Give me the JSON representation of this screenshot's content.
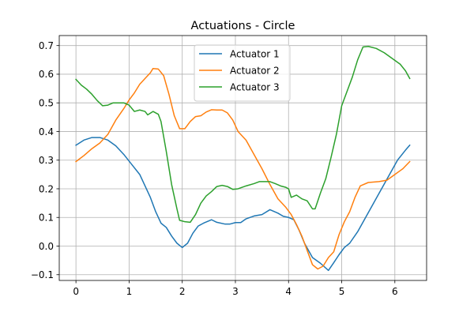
{
  "chart_data": {
    "type": "line",
    "title": "Actuations - Circle",
    "xlabel": "",
    "ylabel": "",
    "xlim": [
      -0.3142,
      6.5973
    ],
    "ylim": [
      -0.12,
      0.735
    ],
    "xticks": [
      0,
      1,
      2,
      3,
      4,
      5,
      6
    ],
    "yticks": [
      -0.1,
      0.0,
      0.1,
      0.2,
      0.3,
      0.4,
      0.5,
      0.6,
      0.7
    ],
    "ytick_labels": [
      "−0.1",
      "0.0",
      "0.1",
      "0.2",
      "0.3",
      "0.4",
      "0.5",
      "0.6",
      "0.7"
    ],
    "grid": true,
    "legend_position": "upper center",
    "series": [
      {
        "name": "Actuator 1",
        "color": "#1f77b4",
        "points": [
          [
            0,
            0.352
          ],
          [
            0.15,
            0.37
          ],
          [
            0.3,
            0.379
          ],
          [
            0.45,
            0.379
          ],
          [
            0.6,
            0.37
          ],
          [
            0.75,
            0.35
          ],
          [
            0.9,
            0.32
          ],
          [
            1.05,
            0.285
          ],
          [
            1.2,
            0.25
          ],
          [
            1.3,
            0.21
          ],
          [
            1.4,
            0.17
          ],
          [
            1.5,
            0.12
          ],
          [
            1.6,
            0.08
          ],
          [
            1.7,
            0.065
          ],
          [
            1.8,
            0.035
          ],
          [
            1.9,
            0.01
          ],
          [
            2.0,
            -0.005
          ],
          [
            2.1,
            0.01
          ],
          [
            2.2,
            0.045
          ],
          [
            2.3,
            0.07
          ],
          [
            2.4,
            0.08
          ],
          [
            2.55,
            0.092
          ],
          [
            2.65,
            0.083
          ],
          [
            2.8,
            0.077
          ],
          [
            2.9,
            0.077
          ],
          [
            3.0,
            0.082
          ],
          [
            3.1,
            0.082
          ],
          [
            3.2,
            0.095
          ],
          [
            3.35,
            0.105
          ],
          [
            3.5,
            0.11
          ],
          [
            3.65,
            0.127
          ],
          [
            3.8,
            0.115
          ],
          [
            3.9,
            0.104
          ],
          [
            4.0,
            0.1
          ],
          [
            4.1,
            0.092
          ],
          [
            4.2,
            0.055
          ],
          [
            4.3,
            0.01
          ],
          [
            4.45,
            -0.04
          ],
          [
            4.6,
            -0.06
          ],
          [
            4.75,
            -0.085
          ],
          [
            4.85,
            -0.058
          ],
          [
            4.95,
            -0.03
          ],
          [
            5.05,
            -0.005
          ],
          [
            5.15,
            0.01
          ],
          [
            5.3,
            0.05
          ],
          [
            5.45,
            0.1
          ],
          [
            5.6,
            0.15
          ],
          [
            5.75,
            0.2
          ],
          [
            5.9,
            0.25
          ],
          [
            6.05,
            0.3
          ],
          [
            6.2,
            0.335
          ],
          [
            6.28,
            0.352
          ]
        ]
      },
      {
        "name": "Actuator 2",
        "color": "#ff7f0e",
        "points": [
          [
            0,
            0.295
          ],
          [
            0.15,
            0.316
          ],
          [
            0.3,
            0.34
          ],
          [
            0.45,
            0.36
          ],
          [
            0.6,
            0.39
          ],
          [
            0.75,
            0.44
          ],
          [
            0.9,
            0.48
          ],
          [
            1.0,
            0.51
          ],
          [
            1.1,
            0.535
          ],
          [
            1.2,
            0.565
          ],
          [
            1.3,
            0.585
          ],
          [
            1.4,
            0.605
          ],
          [
            1.45,
            0.62
          ],
          [
            1.55,
            0.618
          ],
          [
            1.65,
            0.595
          ],
          [
            1.75,
            0.53
          ],
          [
            1.85,
            0.455
          ],
          [
            1.95,
            0.41
          ],
          [
            2.05,
            0.41
          ],
          [
            2.15,
            0.435
          ],
          [
            2.25,
            0.452
          ],
          [
            2.35,
            0.455
          ],
          [
            2.45,
            0.468
          ],
          [
            2.55,
            0.476
          ],
          [
            2.65,
            0.475
          ],
          [
            2.75,
            0.475
          ],
          [
            2.85,
            0.465
          ],
          [
            2.95,
            0.44
          ],
          [
            3.05,
            0.4
          ],
          [
            3.2,
            0.37
          ],
          [
            3.35,
            0.32
          ],
          [
            3.5,
            0.27
          ],
          [
            3.65,
            0.215
          ],
          [
            3.8,
            0.165
          ],
          [
            3.95,
            0.135
          ],
          [
            4.05,
            0.11
          ],
          [
            4.15,
            0.075
          ],
          [
            4.25,
            0.035
          ],
          [
            4.35,
            -0.015
          ],
          [
            4.45,
            -0.065
          ],
          [
            4.55,
            -0.08
          ],
          [
            4.65,
            -0.07
          ],
          [
            4.75,
            -0.04
          ],
          [
            4.85,
            -0.02
          ],
          [
            4.95,
            0.04
          ],
          [
            5.05,
            0.085
          ],
          [
            5.15,
            0.12
          ],
          [
            5.25,
            0.17
          ],
          [
            5.35,
            0.21
          ],
          [
            5.5,
            0.222
          ],
          [
            5.7,
            0.225
          ],
          [
            5.85,
            0.23
          ],
          [
            6.0,
            0.25
          ],
          [
            6.15,
            0.27
          ],
          [
            6.28,
            0.295
          ]
        ]
      },
      {
        "name": "Actuator 3",
        "color": "#2ca02c",
        "points": [
          [
            0,
            0.582
          ],
          [
            0.1,
            0.562
          ],
          [
            0.2,
            0.548
          ],
          [
            0.3,
            0.53
          ],
          [
            0.4,
            0.508
          ],
          [
            0.5,
            0.49
          ],
          [
            0.6,
            0.492
          ],
          [
            0.7,
            0.5
          ],
          [
            0.8,
            0.5
          ],
          [
            0.9,
            0.5
          ],
          [
            1.0,
            0.492
          ],
          [
            1.1,
            0.47
          ],
          [
            1.2,
            0.475
          ],
          [
            1.3,
            0.47
          ],
          [
            1.35,
            0.458
          ],
          [
            1.45,
            0.47
          ],
          [
            1.55,
            0.46
          ],
          [
            1.6,
            0.435
          ],
          [
            1.7,
            0.33
          ],
          [
            1.8,
            0.215
          ],
          [
            1.9,
            0.13
          ],
          [
            1.95,
            0.09
          ],
          [
            2.05,
            0.085
          ],
          [
            2.15,
            0.083
          ],
          [
            2.25,
            0.11
          ],
          [
            2.35,
            0.15
          ],
          [
            2.45,
            0.175
          ],
          [
            2.55,
            0.19
          ],
          [
            2.65,
            0.208
          ],
          [
            2.75,
            0.212
          ],
          [
            2.85,
            0.208
          ],
          [
            2.95,
            0.198
          ],
          [
            3.05,
            0.2
          ],
          [
            3.2,
            0.21
          ],
          [
            3.35,
            0.218
          ],
          [
            3.45,
            0.225
          ],
          [
            3.55,
            0.225
          ],
          [
            3.65,
            0.225
          ],
          [
            3.75,
            0.218
          ],
          [
            3.85,
            0.21
          ],
          [
            3.95,
            0.205
          ],
          [
            4.0,
            0.2
          ],
          [
            4.05,
            0.17
          ],
          [
            4.15,
            0.178
          ],
          [
            4.25,
            0.165
          ],
          [
            4.35,
            0.158
          ],
          [
            4.45,
            0.13
          ],
          [
            4.5,
            0.13
          ],
          [
            4.6,
            0.185
          ],
          [
            4.7,
            0.235
          ],
          [
            4.8,
            0.31
          ],
          [
            4.9,
            0.39
          ],
          [
            4.95,
            0.44
          ],
          [
            5.0,
            0.49
          ],
          [
            5.1,
            0.54
          ],
          [
            5.2,
            0.59
          ],
          [
            5.3,
            0.65
          ],
          [
            5.4,
            0.695
          ],
          [
            5.5,
            0.697
          ],
          [
            5.65,
            0.69
          ],
          [
            5.8,
            0.675
          ],
          [
            5.95,
            0.655
          ],
          [
            6.1,
            0.635
          ],
          [
            6.2,
            0.612
          ],
          [
            6.28,
            0.585
          ]
        ]
      }
    ]
  }
}
